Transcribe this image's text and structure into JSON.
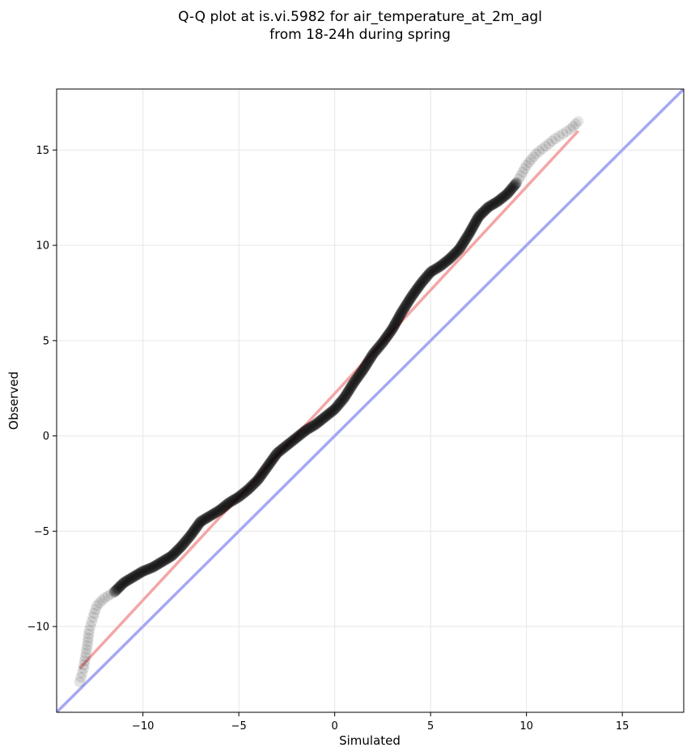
{
  "chart_data": {
    "type": "scatter",
    "title_lines": [
      "Q-Q plot at is.vi.5982 for air_temperature_at_2m_agl",
      "from 18-24h during spring"
    ],
    "xlabel": "Simulated",
    "ylabel": "Observed",
    "xlim": [
      -14.5,
      18.2
    ],
    "ylim": [
      -14.5,
      18.2
    ],
    "x_ticks": [
      -10,
      -5,
      0,
      5,
      10,
      15
    ],
    "y_ticks": [
      -10,
      -5,
      0,
      5,
      10,
      15
    ],
    "x_tick_labels": [
      "−10",
      "−5",
      "0",
      "5",
      "10",
      "15"
    ],
    "y_tick_labels": [
      "−10",
      "−5",
      "0",
      "5",
      "10",
      "15"
    ],
    "grid": true,
    "point_color": "#000000",
    "fit_line": {
      "color": "#f4a6a6",
      "x": [
        -13.3,
        12.7
      ],
      "y": [
        -12.2,
        16.0
      ]
    },
    "identity_line": {
      "color": "#a6a8f4",
      "x": [
        -14.5,
        18.2
      ],
      "y": [
        -14.5,
        18.2
      ]
    },
    "quantile_curve": {
      "x": [
        -13.3,
        -13.1,
        -12.9,
        -12.8,
        -12.6,
        -12.4,
        -12.0,
        -11.5,
        -11.0,
        -10.5,
        -10.0,
        -9.5,
        -9.0,
        -8.5,
        -8.0,
        -7.5,
        -7.0,
        -6.5,
        -6.0,
        -5.5,
        -5.0,
        -4.5,
        -4.0,
        -3.5,
        -3.0,
        -2.5,
        -2.0,
        -1.5,
        -1.0,
        -0.5,
        0.0,
        0.5,
        1.0,
        1.5,
        2.0,
        2.5,
        3.0,
        3.5,
        4.0,
        4.5,
        5.0,
        5.5,
        6.0,
        6.5,
        7.0,
        7.5,
        8.0,
        8.5,
        9.0,
        9.5,
        10.0,
        10.5,
        11.0,
        11.5,
        12.3,
        12.7
      ],
      "y": [
        -12.9,
        -12.2,
        -11.0,
        -10.2,
        -9.5,
        -8.9,
        -8.5,
        -8.2,
        -7.7,
        -7.4,
        -7.1,
        -6.9,
        -6.6,
        -6.3,
        -5.8,
        -5.2,
        -4.5,
        -4.2,
        -3.9,
        -3.5,
        -3.2,
        -2.8,
        -2.3,
        -1.6,
        -0.9,
        -0.5,
        -0.1,
        0.3,
        0.6,
        1.0,
        1.4,
        2.0,
        2.8,
        3.5,
        4.3,
        4.9,
        5.6,
        6.5,
        7.3,
        8.0,
        8.6,
        8.9,
        9.3,
        9.8,
        10.6,
        11.5,
        12.0,
        12.3,
        12.7,
        13.3,
        14.2,
        14.8,
        15.2,
        15.6,
        16.1,
        16.5
      ]
    }
  }
}
